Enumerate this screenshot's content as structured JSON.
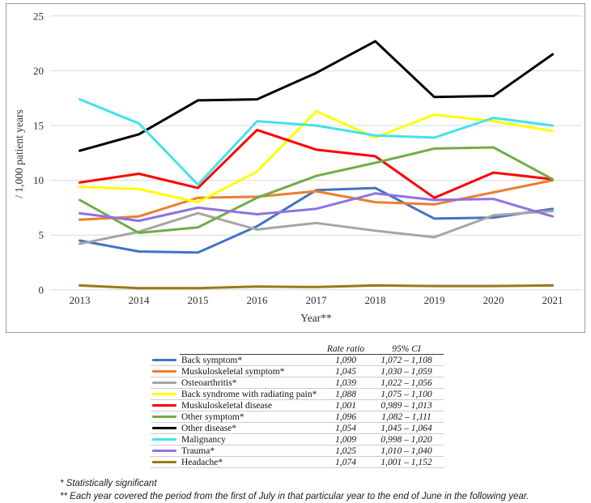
{
  "chart": {
    "y_axis_title": "/ 1,000 patient years",
    "x_axis_title": "Year**",
    "y_ticks": [
      0,
      5,
      10,
      15,
      20,
      25
    ],
    "gridline_color": "#d9d9d9",
    "text_color": "#303030"
  },
  "chart_data": {
    "type": "line",
    "x": [
      2013,
      2014,
      2015,
      2016,
      2017,
      2018,
      2019,
      2020,
      2021
    ],
    "xlabel": "Year**",
    "ylabel": "/ 1,000 patient years",
    "ylim": [
      0,
      25
    ],
    "grid": "horizontal",
    "legend_position": "table-below",
    "series": [
      {
        "name": "Back symptom*",
        "slug": "back-symptom",
        "color": "#4472C4",
        "values": [
          4.5,
          3.5,
          3.4,
          5.8,
          9.1,
          9.3,
          6.5,
          6.6,
          7.4
        ],
        "rate_ratio": "1,090",
        "ci": "1,072 – 1,108"
      },
      {
        "name": "Muskuloskeletal symptom*",
        "slug": "musculoskeletal-symptom",
        "color": "#ED7D31",
        "values": [
          6.4,
          6.7,
          8.4,
          8.5,
          9.0,
          8.0,
          7.8,
          8.9,
          10.0
        ],
        "rate_ratio": "1,045",
        "ci": "1,030 – 1,059"
      },
      {
        "name": "Osteoarthritis*",
        "slug": "osteoarthritis",
        "color": "#A5A5A5",
        "values": [
          4.2,
          5.3,
          7.0,
          5.5,
          6.1,
          5.4,
          4.8,
          6.8,
          7.2
        ],
        "rate_ratio": "1,039",
        "ci": "1,022 – 1,056"
      },
      {
        "name": "Back syndrome with radiating pain*",
        "slug": "back-syndrome-radiating-pain",
        "color": "#FFFF00",
        "values": [
          9.4,
          9.2,
          8.0,
          10.8,
          16.3,
          13.9,
          16.0,
          15.4,
          14.5
        ],
        "rate_ratio": "1,088",
        "ci": "1,075 – 1,100"
      },
      {
        "name": "Muskuloskeletal disease",
        "slug": "musculoskeletal-disease",
        "color": "#FF0000",
        "values": [
          9.8,
          10.6,
          9.3,
          14.6,
          12.8,
          12.2,
          8.4,
          10.7,
          10.1
        ],
        "rate_ratio": "1,001",
        "ci": "0,989 – 1,013"
      },
      {
        "name": "Other symptom*",
        "slug": "other-symptom",
        "color": "#70AD47",
        "values": [
          8.2,
          5.2,
          5.7,
          8.4,
          10.4,
          11.6,
          12.9,
          13.0,
          10.1
        ],
        "rate_ratio": "1,096",
        "ci": "1,082 – 1,111"
      },
      {
        "name": "Other disease*",
        "slug": "other-disease",
        "color": "#000000",
        "values": [
          12.7,
          14.2,
          17.3,
          17.4,
          19.8,
          22.7,
          17.6,
          17.7,
          21.5
        ],
        "rate_ratio": "1,054",
        "ci": "1,045 – 1,064"
      },
      {
        "name": "Malignancy",
        "slug": "malignancy",
        "color": "#44E2EA",
        "values": [
          17.4,
          15.2,
          9.6,
          15.4,
          15.0,
          14.1,
          13.9,
          15.7,
          15.0
        ],
        "rate_ratio": "1,009",
        "ci": "0,998 – 1,020"
      },
      {
        "name": "Trauma*",
        "slug": "trauma",
        "color": "#8F72E3",
        "values": [
          7.0,
          6.3,
          7.5,
          6.9,
          7.4,
          8.8,
          8.2,
          8.3,
          6.7
        ],
        "rate_ratio": "1,025",
        "ci": "1,010 – 1,040"
      },
      {
        "name": "Headache*",
        "slug": "headache",
        "color": "#997A15",
        "values": [
          0.4,
          0.15,
          0.15,
          0.3,
          0.25,
          0.4,
          0.35,
          0.35,
          0.4
        ],
        "rate_ratio": "1,074",
        "ci": "1,001 – 1,152"
      }
    ]
  },
  "legend_table": {
    "headers": {
      "rate_ratio": "Rate ratio",
      "ci": "95% CI"
    }
  },
  "footnotes": [
    "* Statistically significant",
    "** Each year covered the period from the first of July in that particular year to the end of June in the following year."
  ]
}
